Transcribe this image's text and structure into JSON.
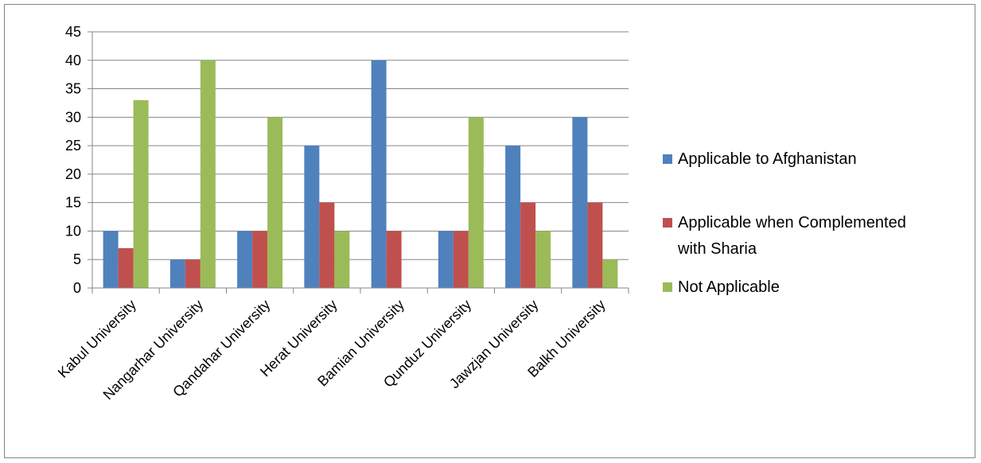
{
  "chart_data": {
    "type": "bar",
    "title": "",
    "xlabel": "",
    "ylabel": "",
    "ylim": [
      0,
      45
    ],
    "yticks": [
      0,
      5,
      10,
      15,
      20,
      25,
      30,
      35,
      40,
      45
    ],
    "grid": true,
    "legend_position": "right",
    "categories": [
      "Kabul University",
      "Nangarhar University",
      "Qandahar University",
      "Herat University",
      "Bamian University",
      "Qunduz University",
      "Jawzjan University",
      "Balkh University"
    ],
    "series": [
      {
        "name": "Applicable to Afghanistan",
        "color": "#4F81BD",
        "values": [
          10,
          5,
          10,
          25,
          40,
          10,
          25,
          30
        ]
      },
      {
        "name": "Applicable when Complemented with Sharia",
        "legend_lines": [
          "Applicable when Complemented",
          "with Sharia"
        ],
        "color": "#C0504D",
        "values": [
          7,
          5,
          10,
          15,
          10,
          10,
          15,
          15
        ]
      },
      {
        "name": "Not Applicable",
        "color": "#9BBB59",
        "values": [
          33,
          40,
          30,
          10,
          0,
          30,
          10,
          5
        ]
      }
    ]
  }
}
